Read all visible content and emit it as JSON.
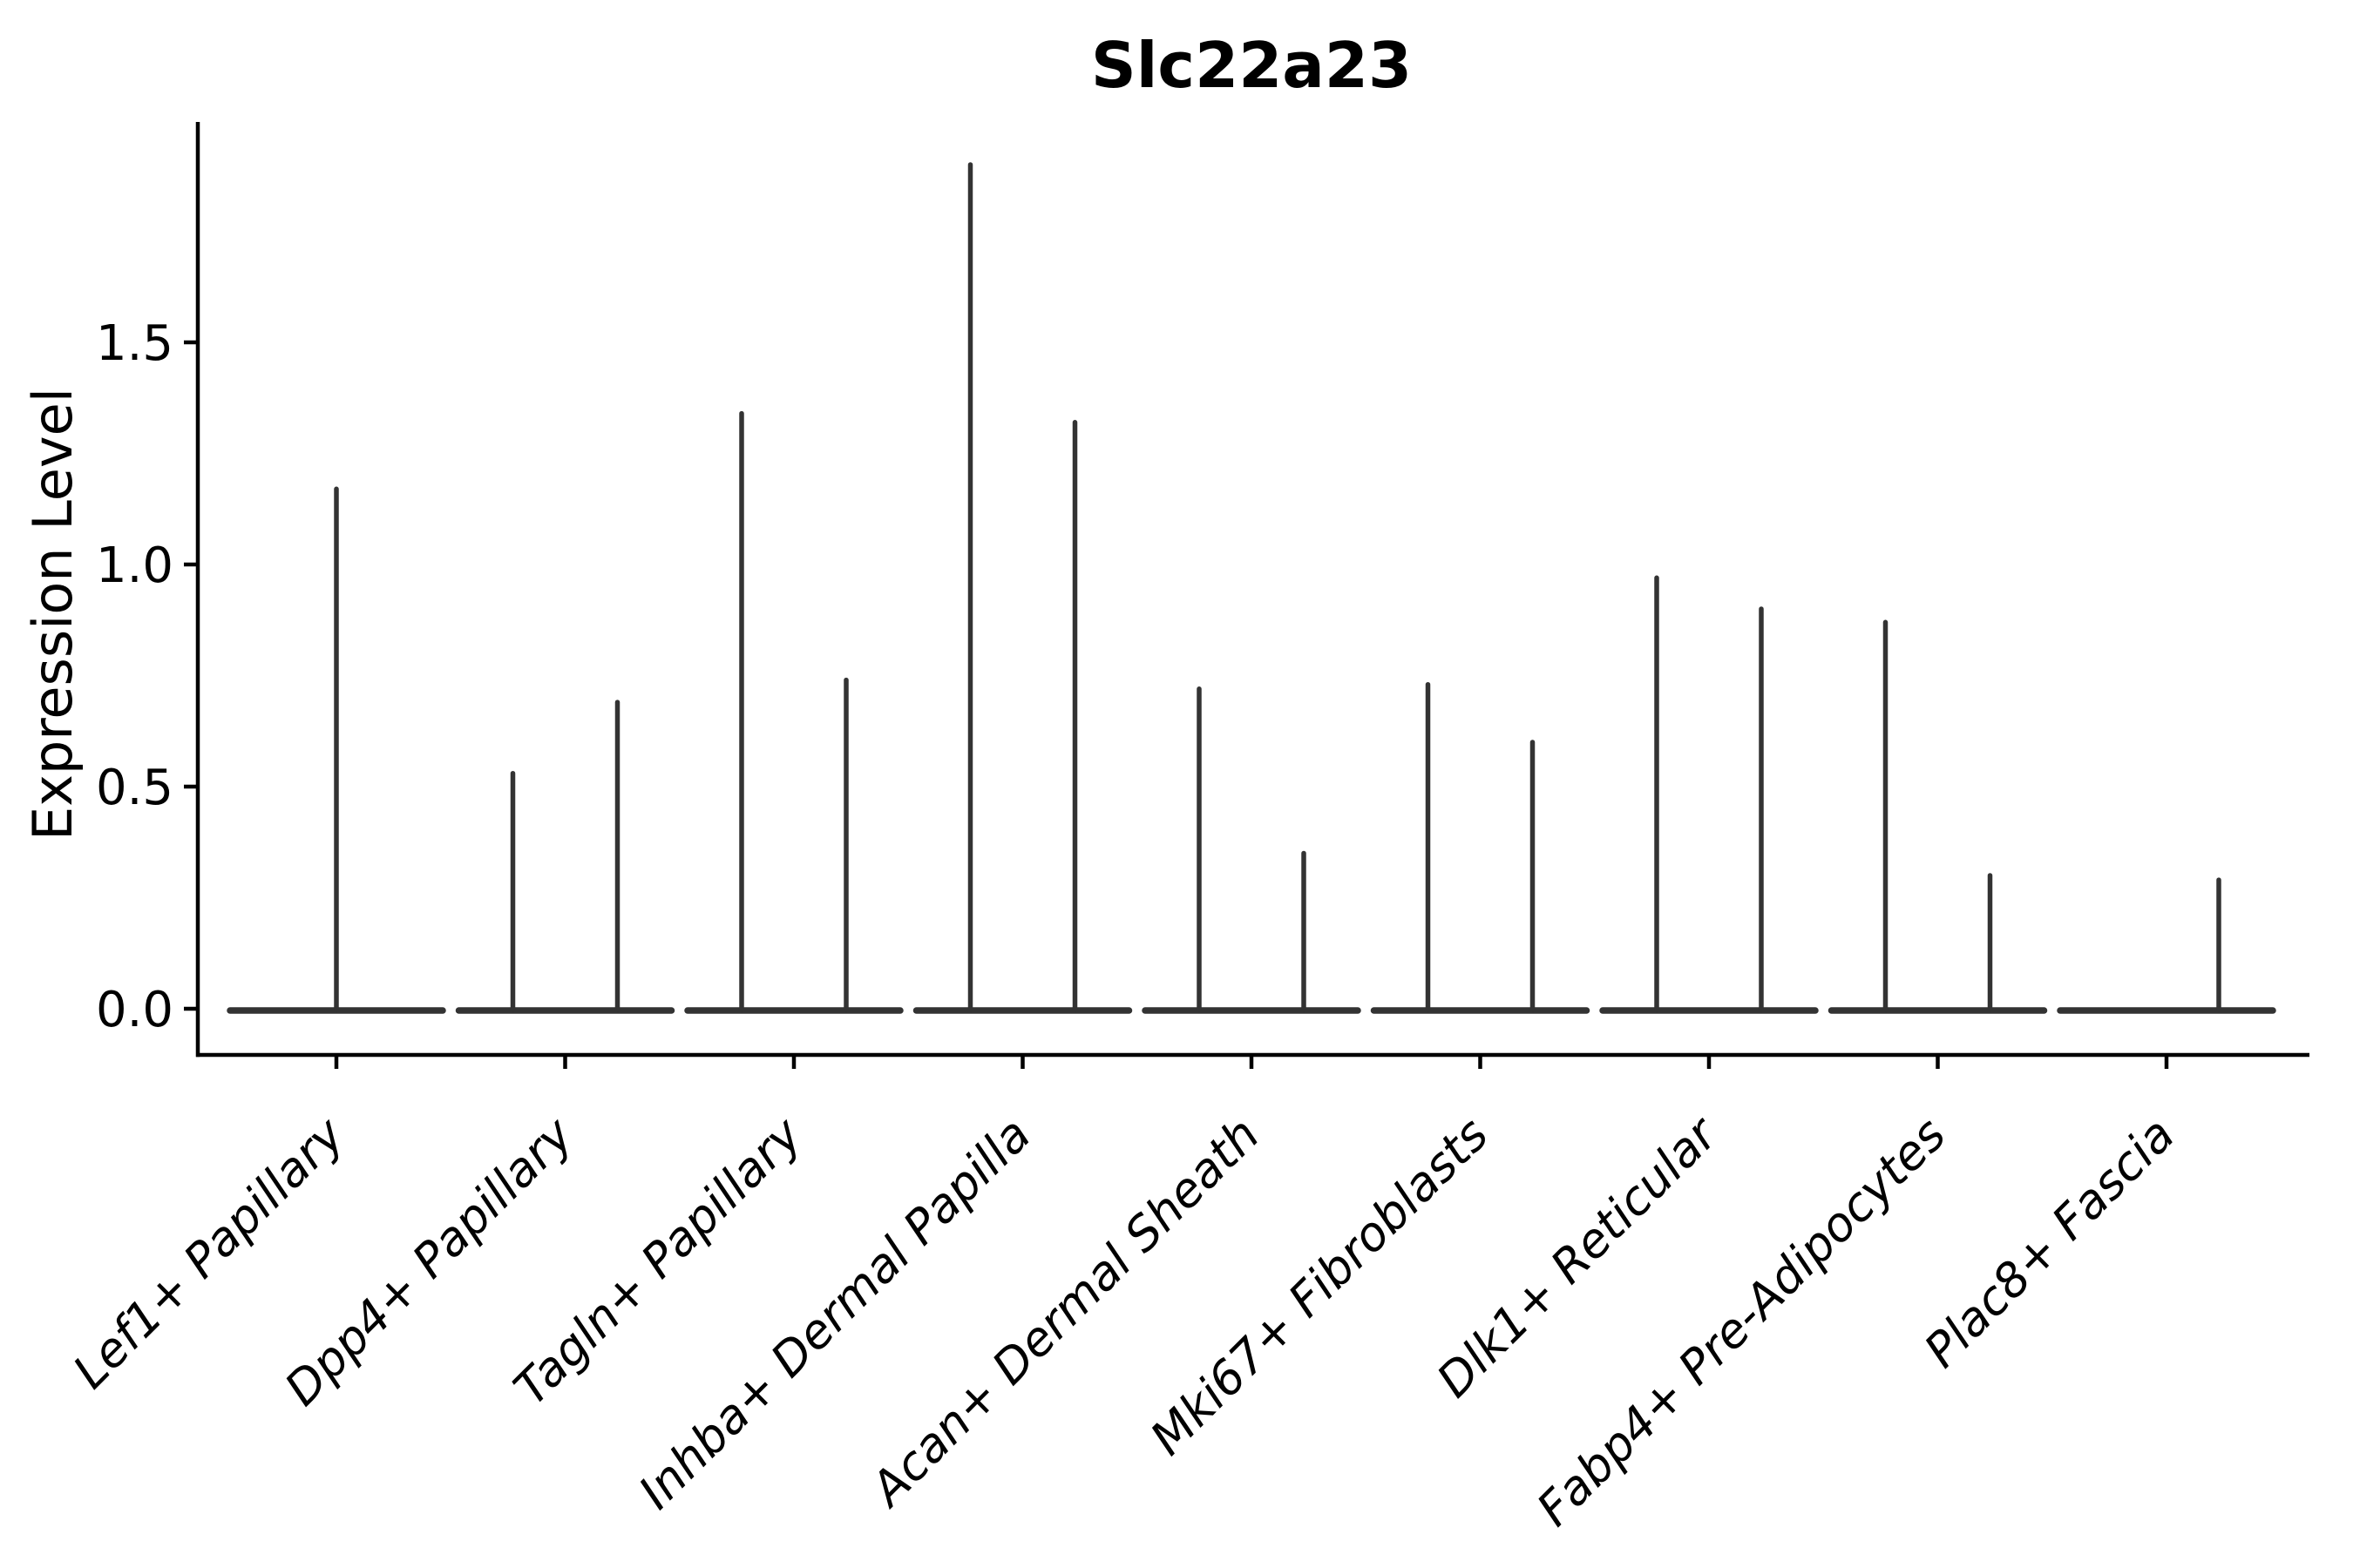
{
  "figure": {
    "title": "Slc22a23",
    "ylabel": "Expression Level"
  },
  "chart_data": {
    "type": "violin",
    "title": "Slc22a23",
    "xlabel": "",
    "ylabel": "Expression Level",
    "ylim": [
      -0.1,
      2.0
    ],
    "yticks": [
      {
        "label": "0.0",
        "value": 0.0
      },
      {
        "label": "0.5",
        "value": 0.5
      },
      {
        "label": "1.0",
        "value": 1.0
      },
      {
        "label": "1.5",
        "value": 1.5
      }
    ],
    "grid": false,
    "legend": "none",
    "baseline_value": 0.0,
    "categories": [
      "Lef1+ Papillary",
      "Dpp4+ Papillary",
      "Tagln+ Papillary",
      "Inhba+ Dermal Papilla",
      "Acan+ Dermal Sheath",
      "Mki67+ Fibroblasts",
      "Dlk1+ Reticular",
      "Fabp4+ Pre-Adipocytes",
      "Plac8+ Fascia"
    ],
    "violins": [
      {
        "category": "Lef1+ Papillary",
        "needles": [
          {
            "position": "center",
            "peak": 1.17
          }
        ]
      },
      {
        "category": "Dpp4+ Papillary",
        "needles": [
          {
            "position": "left",
            "peak": 0.53
          },
          {
            "position": "right",
            "peak": 0.69
          }
        ]
      },
      {
        "category": "Tagln+ Papillary",
        "needles": [
          {
            "position": "left",
            "peak": 1.34
          },
          {
            "position": "right",
            "peak": 0.74
          }
        ]
      },
      {
        "category": "Inhba+ Dermal Papilla",
        "needles": [
          {
            "position": "left",
            "peak": 1.9
          },
          {
            "position": "right",
            "peak": 1.32
          }
        ]
      },
      {
        "category": "Acan+ Dermal Sheath",
        "needles": [
          {
            "position": "left",
            "peak": 0.72
          },
          {
            "position": "right",
            "peak": 0.35
          }
        ]
      },
      {
        "category": "Mki67+ Fibroblasts",
        "needles": [
          {
            "position": "left",
            "peak": 0.73
          },
          {
            "position": "right",
            "peak": 0.6
          }
        ]
      },
      {
        "category": "Dlk1+ Reticular",
        "needles": [
          {
            "position": "left",
            "peak": 0.97
          },
          {
            "position": "right",
            "peak": 0.9
          }
        ]
      },
      {
        "category": "Fabp4+ Pre-Adipocytes",
        "needles": [
          {
            "position": "left",
            "peak": 0.87
          },
          {
            "position": "right",
            "peak": 0.3
          }
        ]
      },
      {
        "category": "Plac8+ Fascia",
        "needles": [
          {
            "position": "right",
            "peak": 0.29
          }
        ]
      }
    ],
    "colors": {
      "violin": "#333333",
      "axis": "#000000",
      "text": "#000000",
      "background": "#ffffff"
    }
  }
}
